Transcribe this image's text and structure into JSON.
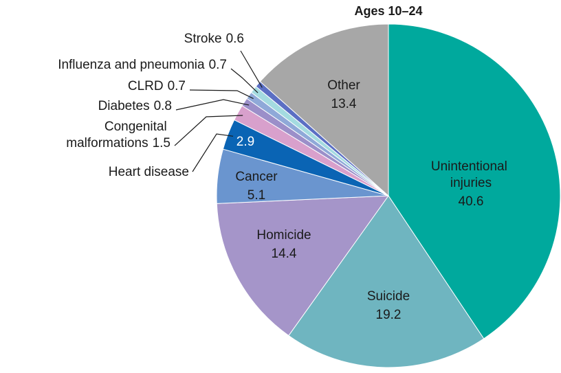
{
  "chart_data": {
    "type": "pie",
    "title": "Ages 10–24",
    "categories": [
      "Unintentional injuries",
      "Suicide",
      "Homicide",
      "Cancer",
      "Heart disease",
      "Congenital malformations",
      "Diabetes",
      "CLRD",
      "Influenza and pneumonia",
      "Stroke",
      "Other"
    ],
    "values": [
      40.6,
      19.2,
      14.4,
      5.1,
      2.9,
      1.5,
      0.8,
      0.7,
      0.7,
      0.6,
      13.4
    ],
    "colors": [
      "#00a99d",
      "#6fb5c0",
      "#a595c9",
      "#6a95cf",
      "#0a64b4",
      "#d8a0cc",
      "#9b8fc9",
      "#8fa9d8",
      "#a4dbe0",
      "#5b6fc4",
      "#a7a7a7"
    ]
  }
}
